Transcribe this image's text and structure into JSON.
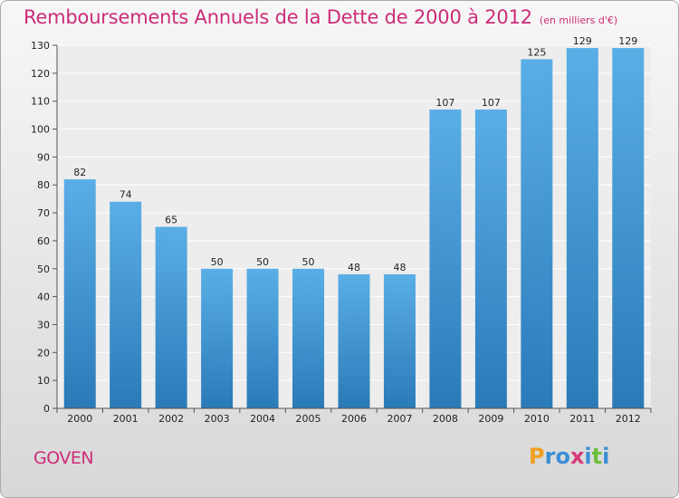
{
  "page": {
    "place_name": "GOVEN",
    "logo": {
      "text": "Proxiti",
      "letters": [
        {
          "ch": "P",
          "color": "#f0a020"
        },
        {
          "ch": "r",
          "color": "#3a8fd6"
        },
        {
          "ch": "o",
          "color": "#3a8fd6"
        },
        {
          "ch": "x",
          "color": "#d63a7a"
        },
        {
          "ch": "i",
          "color": "#3a8fd6"
        },
        {
          "ch": "t",
          "color": "#6bbf3a"
        },
        {
          "ch": "i",
          "color": "#3a8fd6"
        }
      ]
    }
  },
  "chart_data": {
    "type": "bar",
    "title": "Remboursements Annuels de la Dette de 2000 à 2012",
    "subtitle": "(en milliers d'€)",
    "xlabel": "",
    "ylabel": "",
    "categories": [
      "2000",
      "2001",
      "2002",
      "2003",
      "2004",
      "2005",
      "2006",
      "2007",
      "2008",
      "2009",
      "2010",
      "2011",
      "2012"
    ],
    "values": [
      82,
      74,
      65,
      50,
      50,
      50,
      48,
      48,
      107,
      107,
      125,
      129,
      129
    ],
    "ylim": [
      0,
      130
    ],
    "yticks": [
      0,
      10,
      20,
      30,
      40,
      50,
      60,
      70,
      80,
      90,
      100,
      110,
      120,
      130
    ],
    "grid": true,
    "bar_color_top": "#5aaee6",
    "bar_color_bottom": "#2a7ab8",
    "title_color": "#cc2c78"
  }
}
